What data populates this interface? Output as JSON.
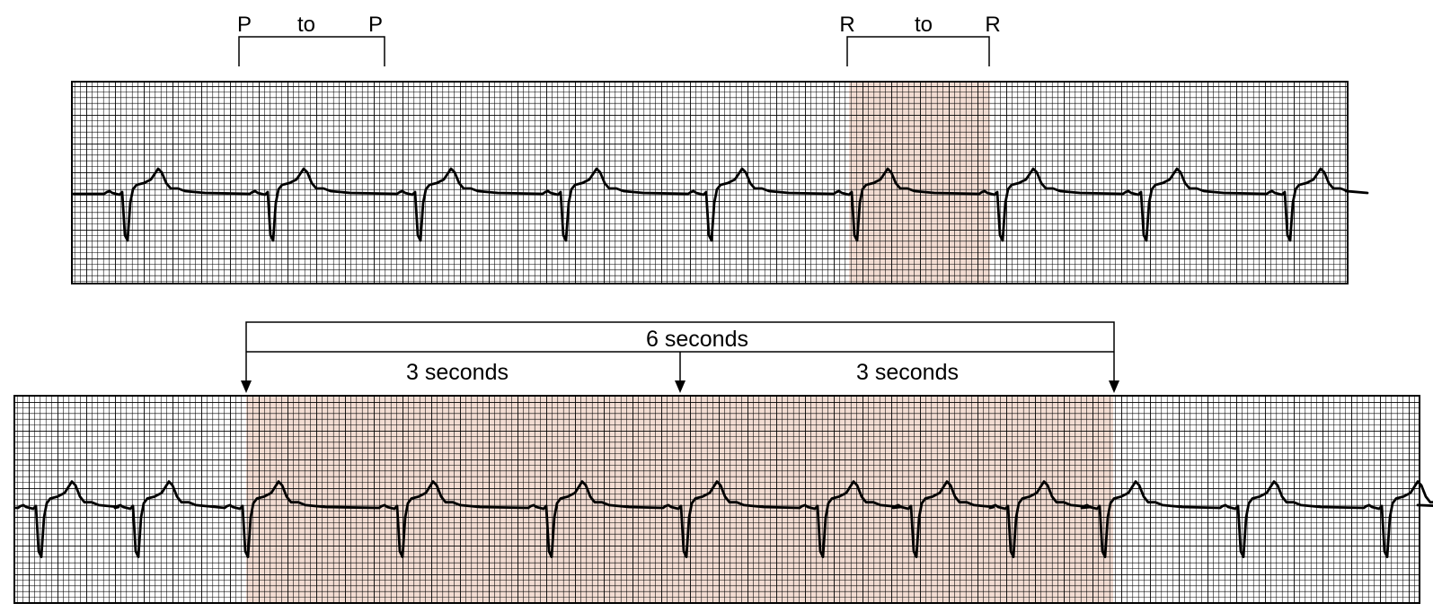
{
  "colors": {
    "background": "#ffffff",
    "grid_line": "#000000",
    "highlight": "#f2dcd2",
    "trace": "#000000"
  },
  "top_strip": {
    "p_to_p_bracket": {
      "start_label": "P",
      "middle_label": "to",
      "end_label": "P"
    },
    "r_to_r_bracket": {
      "start_label": "R",
      "middle_label": "to",
      "end_label": "R"
    }
  },
  "bottom_strip": {
    "total_span_label": "6 seconds",
    "first_half_label": "3 seconds",
    "second_half_label": "3 seconds"
  }
}
